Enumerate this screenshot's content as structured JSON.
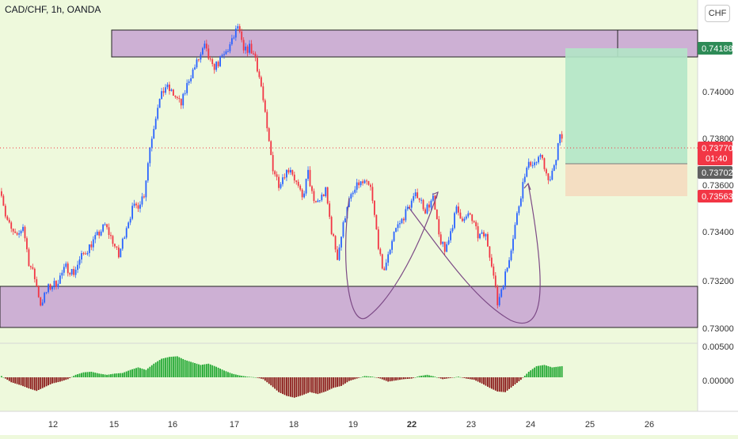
{
  "header": {
    "symbol_title": "CAD/CHF, 1h, OANDA",
    "currency_button": "CHF"
  },
  "colors": {
    "background": "#eef9dc",
    "bull": "#2962ff",
    "bear": "#f23645",
    "zone_fill": "#cdb0d4",
    "tp_fill": "#b2e6c7",
    "sl_fill": "#f3dcc0",
    "arrow": "#7c4a86",
    "osc_up": "#22a832",
    "osc_down": "#8b1a1a"
  },
  "chart_data": [
    {
      "type": "candlestick",
      "symbol": "CAD/CHF",
      "timeframe": "1h",
      "source": "OANDA",
      "x_tick_labels": [
        "12",
        "15",
        "16",
        "17",
        "18",
        "19",
        "22",
        "23",
        "24",
        "25",
        "26"
      ],
      "y_tick_labels": [
        "0.73000",
        "0.73200",
        "0.73400",
        "0.73600",
        "0.73800",
        "0.74000"
      ],
      "ylim": [
        0.7297,
        0.7428
      ],
      "price_labels": {
        "target": "0.74188",
        "current": "0.73770",
        "countdown": "01:40",
        "entry": "0.73702",
        "stop": "0.73563"
      },
      "anchors": [
        [
          0,
          0.7355
        ],
        [
          2,
          0.7346
        ],
        [
          5,
          0.734
        ],
        [
          8,
          0.7337
        ],
        [
          11,
          0.7342
        ],
        [
          14,
          0.7328
        ],
        [
          17,
          0.7322
        ],
        [
          20,
          0.7312
        ],
        [
          24,
          0.7318
        ],
        [
          28,
          0.732
        ],
        [
          33,
          0.7326
        ],
        [
          37,
          0.7324
        ],
        [
          41,
          0.733
        ],
        [
          45,
          0.7334
        ],
        [
          49,
          0.7338
        ],
        [
          53,
          0.7342
        ],
        [
          57,
          0.7336
        ],
        [
          60,
          0.733
        ],
        [
          64,
          0.7342
        ],
        [
          67,
          0.7348
        ],
        [
          70,
          0.735
        ],
        [
          73,
          0.7354
        ],
        [
          76,
          0.7372
        ],
        [
          80,
          0.7388
        ],
        [
          84,
          0.7395
        ],
        [
          88,
          0.7392
        ],
        [
          92,
          0.7388
        ],
        [
          96,
          0.7398
        ],
        [
          100,
          0.7404
        ],
        [
          104,
          0.741
        ],
        [
          108,
          0.7402
        ],
        [
          111,
          0.7404
        ],
        [
          115,
          0.7408
        ],
        [
          118,
          0.7412
        ],
        [
          121,
          0.7418
        ],
        [
          124,
          0.7408
        ],
        [
          127,
          0.741
        ],
        [
          130,
          0.7406
        ],
        [
          133,
          0.7395
        ],
        [
          136,
          0.7378
        ],
        [
          139,
          0.7364
        ],
        [
          142,
          0.7358
        ],
        [
          145,
          0.7362
        ],
        [
          148,
          0.7364
        ],
        [
          151,
          0.7358
        ],
        [
          154,
          0.7352
        ],
        [
          157,
          0.7362
        ],
        [
          160,
          0.735
        ],
        [
          163,
          0.7352
        ],
        [
          166,
          0.7355
        ],
        [
          169,
          0.734
        ],
        [
          172,
          0.733
        ],
        [
          174,
          0.7338
        ],
        [
          177,
          0.735
        ],
        [
          180,
          0.7354
        ],
        [
          183,
          0.7358
        ],
        [
          186,
          0.7358
        ],
        [
          189,
          0.7356
        ],
        [
          192,
          0.734
        ],
        [
          195,
          0.7324
        ],
        [
          198,
          0.733
        ],
        [
          201,
          0.734
        ],
        [
          205,
          0.7344
        ],
        [
          209,
          0.735
        ],
        [
          213,
          0.7354
        ],
        [
          217,
          0.7348
        ],
        [
          221,
          0.7352
        ],
        [
          224,
          0.7338
        ],
        [
          227,
          0.7332
        ],
        [
          230,
          0.734
        ],
        [
          233,
          0.7348
        ],
        [
          237,
          0.7344
        ],
        [
          240,
          0.7346
        ],
        [
          244,
          0.7338
        ],
        [
          248,
          0.7338
        ],
        [
          251,
          0.7328
        ],
        [
          254,
          0.7312
        ],
        [
          256,
          0.7318
        ],
        [
          259,
          0.7326
        ],
        [
          262,
          0.7338
        ],
        [
          265,
          0.735
        ],
        [
          268,
          0.7362
        ],
        [
          271,
          0.7366
        ],
        [
          274,
          0.7366
        ],
        [
          277,
          0.7368
        ],
        [
          280,
          0.7358
        ],
        [
          283,
          0.7364
        ],
        [
          286,
          0.7378
        ],
        [
          287,
          0.7375
        ]
      ]
    },
    {
      "type": "histogram",
      "name": "oscillator",
      "y_tick_labels": [
        "0.00500",
        "0.00000"
      ],
      "ylim": [
        -0.0055,
        0.0055
      ],
      "anchors": [
        [
          0,
          0.0002
        ],
        [
          5,
          -0.0008
        ],
        [
          10,
          -0.0013
        ],
        [
          14,
          -0.0018
        ],
        [
          18,
          -0.0022
        ],
        [
          22,
          -0.0016
        ],
        [
          26,
          -0.001
        ],
        [
          30,
          -0.0007
        ],
        [
          34,
          -0.0003
        ],
        [
          38,
          0.0004
        ],
        [
          42,
          0.0008
        ],
        [
          46,
          0.0009
        ],
        [
          50,
          0.0006
        ],
        [
          54,
          0.0004
        ],
        [
          58,
          0.0006
        ],
        [
          62,
          0.0007
        ],
        [
          66,
          0.0012
        ],
        [
          70,
          0.0016
        ],
        [
          74,
          0.0012
        ],
        [
          78,
          0.0022
        ],
        [
          82,
          0.003
        ],
        [
          86,
          0.0033
        ],
        [
          90,
          0.0034
        ],
        [
          94,
          0.0028
        ],
        [
          98,
          0.0024
        ],
        [
          102,
          0.002
        ],
        [
          106,
          0.0022
        ],
        [
          110,
          0.0017
        ],
        [
          114,
          0.0011
        ],
        [
          118,
          0.0006
        ],
        [
          122,
          0.0003
        ],
        [
          126,
          0.0001
        ],
        [
          130,
          0.0
        ],
        [
          134,
          -0.0003
        ],
        [
          138,
          -0.0013
        ],
        [
          142,
          -0.0024
        ],
        [
          146,
          -0.003
        ],
        [
          150,
          -0.0033
        ],
        [
          154,
          -0.0029
        ],
        [
          158,
          -0.0024
        ],
        [
          162,
          -0.0027
        ],
        [
          166,
          -0.0023
        ],
        [
          170,
          -0.0017
        ],
        [
          174,
          -0.0014
        ],
        [
          178,
          -0.0006
        ],
        [
          182,
          -0.0002
        ],
        [
          186,
          0.0002
        ],
        [
          190,
          0.0001
        ],
        [
          194,
          -0.0002
        ],
        [
          198,
          -0.0007
        ],
        [
          202,
          -0.0005
        ],
        [
          206,
          -0.0003
        ],
        [
          210,
          -0.0002
        ],
        [
          214,
          0.0002
        ],
        [
          218,
          0.0004
        ],
        [
          222,
          0.0001
        ],
        [
          226,
          -0.0003
        ],
        [
          230,
          -0.0001
        ],
        [
          234,
          0.0001
        ],
        [
          238,
          -0.0002
        ],
        [
          242,
          -0.0004
        ],
        [
          246,
          -0.001
        ],
        [
          250,
          -0.0017
        ],
        [
          254,
          -0.0023
        ],
        [
          258,
          -0.0024
        ],
        [
          262,
          -0.0014
        ],
        [
          266,
          -0.0004
        ],
        [
          270,
          0.0009
        ],
        [
          274,
          0.0018
        ],
        [
          278,
          0.002
        ],
        [
          282,
          0.0016
        ],
        [
          287,
          0.0018
        ]
      ]
    }
  ]
}
